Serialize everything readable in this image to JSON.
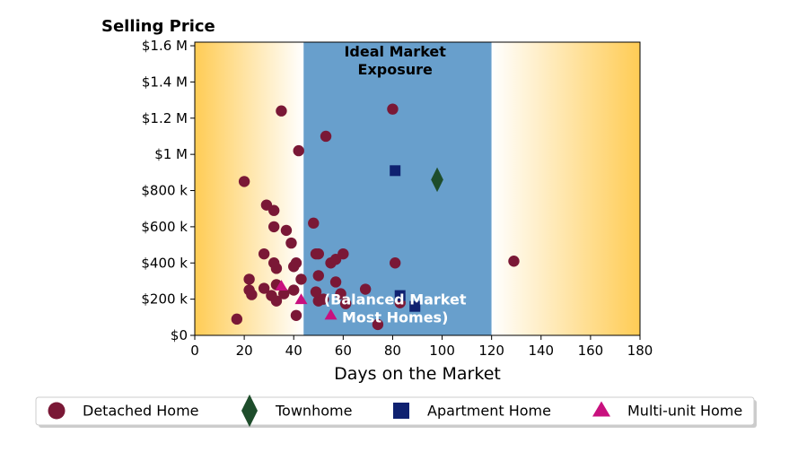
{
  "chart_data": {
    "type": "scatter",
    "title": "",
    "ylabel": "Selling Price",
    "xlabel": "Days on the Market",
    "xlim": [
      0,
      180
    ],
    "ylim": [
      0,
      1620000
    ],
    "xticks": [
      {
        "value": 0,
        "label": "0"
      },
      {
        "value": 20,
        "label": "20"
      },
      {
        "value": 40,
        "label": "40"
      },
      {
        "value": 60,
        "label": "60"
      },
      {
        "value": 80,
        "label": "80"
      },
      {
        "value": 100,
        "label": "100"
      },
      {
        "value": 120,
        "label": "120"
      },
      {
        "value": 140,
        "label": "140"
      },
      {
        "value": 160,
        "label": "160"
      },
      {
        "value": 180,
        "label": "180"
      }
    ],
    "yticks": [
      {
        "value": 0,
        "label": "$0"
      },
      {
        "value": 200000,
        "label": "$200 k"
      },
      {
        "value": 400000,
        "label": "$400 k"
      },
      {
        "value": 600000,
        "label": "$600 k"
      },
      {
        "value": 800000,
        "label": "$800 k"
      },
      {
        "value": 1000000,
        "label": "$1 M"
      },
      {
        "value": 1200000,
        "label": "$1.2 M"
      },
      {
        "value": 1400000,
        "label": "$1.4 M"
      },
      {
        "value": 1600000,
        "label": "$1.6 M"
      }
    ],
    "grid": false,
    "legend_position": "bottom",
    "regions": [
      {
        "type": "gradient",
        "x": [
          0,
          44
        ],
        "from_color": "#ffcc55",
        "to_color": "#ffffff",
        "direction": "fade-right"
      },
      {
        "type": "band",
        "x": [
          44,
          120
        ],
        "color": "#689fcc"
      },
      {
        "type": "gradient",
        "x": [
          120,
          180
        ],
        "from_color": "#ffffff",
        "to_color": "#ffcc55",
        "direction": "fade-in-right"
      }
    ],
    "annotations": [
      {
        "lines": [
          "Ideal Market",
          "Exposure"
        ],
        "x": 81,
        "y": 1520000,
        "color": "#000000",
        "style": "top"
      },
      {
        "lines": [
          "(Balanced Market",
          "Most Homes)"
        ],
        "x": 81,
        "y": 150000,
        "color": "#ffffff",
        "style": "bottom"
      }
    ],
    "series": [
      {
        "name": "Detached Home",
        "marker": "circle",
        "color": "#7a1836",
        "points": [
          [
            17,
            90000
          ],
          [
            20,
            850000
          ],
          [
            22,
            310000
          ],
          [
            22,
            250000
          ],
          [
            23,
            225000
          ],
          [
            28,
            450000
          ],
          [
            28,
            260000
          ],
          [
            29,
            720000
          ],
          [
            31,
            220000
          ],
          [
            32,
            690000
          ],
          [
            32,
            600000
          ],
          [
            32,
            400000
          ],
          [
            33,
            370000
          ],
          [
            33,
            280000
          ],
          [
            33,
            190000
          ],
          [
            35,
            1240000
          ],
          [
            36,
            230000
          ],
          [
            37,
            580000
          ],
          [
            39,
            510000
          ],
          [
            40,
            250000
          ],
          [
            40,
            380000
          ],
          [
            41,
            400000
          ],
          [
            41,
            110000
          ],
          [
            42,
            1020000
          ],
          [
            43,
            310000
          ],
          [
            48,
            620000
          ],
          [
            49,
            450000
          ],
          [
            49,
            240000
          ],
          [
            50,
            450000
          ],
          [
            50,
            330000
          ],
          [
            50,
            190000
          ],
          [
            52,
            200000
          ],
          [
            53,
            1100000
          ],
          [
            55,
            400000
          ],
          [
            57,
            420000
          ],
          [
            57,
            295000
          ],
          [
            59,
            230000
          ],
          [
            60,
            450000
          ],
          [
            61,
            175000
          ],
          [
            69,
            255000
          ],
          [
            74,
            60000
          ],
          [
            80,
            1250000
          ],
          [
            81,
            400000
          ],
          [
            83,
            180000
          ],
          [
            129,
            410000
          ]
        ]
      },
      {
        "name": "Townhome",
        "marker": "diamond",
        "color": "#1e4d2b",
        "points": [
          [
            98,
            860000
          ]
        ]
      },
      {
        "name": "Apartment Home",
        "marker": "square",
        "color": "#0f2170",
        "points": [
          [
            81,
            910000
          ],
          [
            83,
            220000
          ],
          [
            89,
            160000
          ]
        ]
      },
      {
        "name": "Multi-unit Home",
        "marker": "triangle",
        "color": "#c8107e",
        "points": [
          [
            35,
            270000
          ],
          [
            43,
            195000
          ],
          [
            55,
            110000
          ]
        ]
      }
    ]
  }
}
